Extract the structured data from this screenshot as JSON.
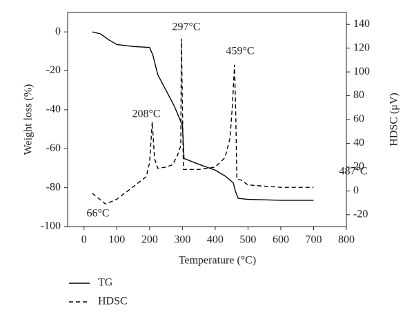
{
  "chart_data": {
    "type": "line",
    "xlabel": "Temperature (°C)",
    "ylabel": "Weight loss (%)",
    "y2label": "HDSC (μV)",
    "xlim": [
      -50,
      800
    ],
    "xticks": [
      0,
      100,
      200,
      300,
      400,
      500,
      600,
      700,
      800
    ],
    "ylim": [
      -100,
      10
    ],
    "yticks": [
      -100,
      -80,
      -60,
      -40,
      -20,
      0
    ],
    "y2lim": [
      -30,
      150
    ],
    "y2ticks": [
      -20,
      0,
      20,
      40,
      60,
      80,
      100,
      120,
      140
    ],
    "legend": "bottom-left",
    "series": [
      {
        "name": "TG",
        "color": "#000000",
        "dash": "solid",
        "x": [
          25,
          50,
          75,
          100,
          150,
          200,
          210,
          225,
          250,
          275,
          300,
          305,
          350,
          400,
          430,
          455,
          462,
          470,
          500,
          600,
          700
        ],
        "values": [
          0,
          -1,
          -4,
          -6.5,
          -7.5,
          -8,
          -12,
          -22,
          -30,
          -38,
          -48,
          -65,
          -68,
          -71,
          -74,
          -77.5,
          -82,
          -85.5,
          -86,
          -86.5,
          -86.5
        ]
      },
      {
        "name": "HDSC",
        "color": "#000000",
        "dash": "dashed",
        "axis": "y2",
        "x": [
          25,
          66,
          100,
          150,
          190,
          200,
          208,
          215,
          225,
          250,
          270,
          285,
          295,
          297,
          303,
          350,
          400,
          430,
          445,
          452,
          459,
          463,
          466,
          480,
          500,
          600,
          700
        ],
        "values": [
          -2,
          -11,
          -7,
          3.5,
          12,
          24,
          58,
          27,
          19,
          20,
          22,
          30,
          38,
          128,
          18,
          18,
          20,
          28,
          44,
          70,
          106,
          60,
          10,
          9,
          5,
          3,
          3
        ]
      }
    ],
    "annotations": [
      "66°C",
      "208°C",
      "297°C",
      "459°C",
      "487°C"
    ]
  }
}
